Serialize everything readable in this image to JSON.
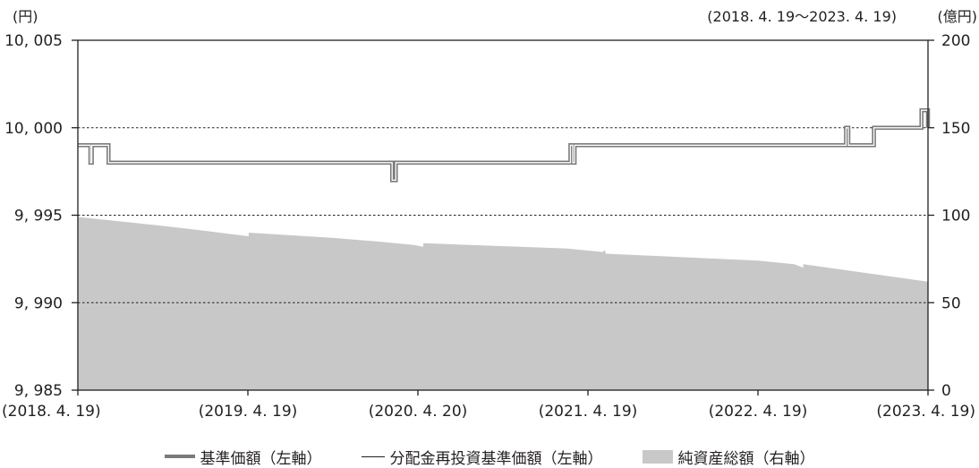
{
  "chart_data": {
    "type": "line",
    "left_unit": "(円)",
    "right_unit": "(億円)",
    "period": "(2018. 4. 19〜2023. 4. 19)",
    "left_ylim": [
      9985,
      10005
    ],
    "left_ticks": [
      "10, 005",
      "10, 000",
      "9, 995",
      "9, 990",
      "9, 985"
    ],
    "right_ylim": [
      0,
      200
    ],
    "right_ticks": [
      "200",
      "150",
      "100",
      "50",
      "0"
    ],
    "x_tick_labels": [
      "(2018. 4. 19)",
      "(2019. 4. 19)",
      "(2020. 4. 20)",
      "(2021. 4. 19)",
      "(2022. 4. 19)",
      "(2023. 4. 19)"
    ],
    "x_domain": [
      "2018-04-19",
      "2023-04-19"
    ],
    "grid": "dashed horizontal at 10,000 / 9,995 / 9,990",
    "legend_position": "bottom",
    "series": [
      {
        "name": "基準価額（左軸）",
        "axis": "left",
        "style": "thick-gray-line",
        "color": "#7a7a7a",
        "points": [
          [
            "2018-04-19",
            9999
          ],
          [
            "2018-05-16",
            9999
          ],
          [
            "2018-05-16",
            9998
          ],
          [
            "2018-05-19",
            9998
          ],
          [
            "2018-05-19",
            9999
          ],
          [
            "2018-06-24",
            9999
          ],
          [
            "2018-06-24",
            9998
          ],
          [
            "2020-02-23",
            9998
          ],
          [
            "2020-02-23",
            9997
          ],
          [
            "2020-03-02",
            9997
          ],
          [
            "2020-03-02",
            9998
          ],
          [
            "2021-03-12",
            9998
          ],
          [
            "2021-03-12",
            9999
          ],
          [
            "2021-03-17",
            9999
          ],
          [
            "2021-03-17",
            9998
          ],
          [
            "2021-03-21",
            9998
          ],
          [
            "2021-03-21",
            9999
          ],
          [
            "2022-10-25",
            9999
          ],
          [
            "2022-10-25",
            10000
          ],
          [
            "2022-10-30",
            10000
          ],
          [
            "2022-10-30",
            9999
          ],
          [
            "2022-12-24",
            9999
          ],
          [
            "2022-12-24",
            10000
          ],
          [
            "2023-04-05",
            10000
          ],
          [
            "2023-04-05",
            10001
          ],
          [
            "2023-04-19",
            10001
          ],
          [
            "2023-04-19",
            10000
          ]
        ]
      },
      {
        "name": "分配金再投資基準価額（左軸）",
        "axis": "left",
        "style": "thin-black-line",
        "color": "#231f20",
        "points": [
          [
            "2018-04-19",
            9999
          ],
          [
            "2018-05-16",
            9999
          ],
          [
            "2018-05-16",
            9998
          ],
          [
            "2018-05-19",
            9998
          ],
          [
            "2018-05-19",
            9999
          ],
          [
            "2018-06-24",
            9999
          ],
          [
            "2018-06-24",
            9998
          ],
          [
            "2020-02-23",
            9998
          ],
          [
            "2020-02-23",
            9997
          ],
          [
            "2020-03-02",
            9997
          ],
          [
            "2020-03-02",
            9998
          ],
          [
            "2021-03-12",
            9998
          ],
          [
            "2021-03-12",
            9999
          ],
          [
            "2021-03-17",
            9999
          ],
          [
            "2021-03-17",
            9998
          ],
          [
            "2021-03-21",
            9998
          ],
          [
            "2021-03-21",
            9999
          ],
          [
            "2022-10-25",
            9999
          ],
          [
            "2022-10-25",
            10000
          ],
          [
            "2022-10-30",
            10000
          ],
          [
            "2022-10-30",
            9999
          ],
          [
            "2022-12-24",
            9999
          ],
          [
            "2022-12-24",
            10000
          ],
          [
            "2023-04-05",
            10000
          ],
          [
            "2023-04-05",
            10001
          ],
          [
            "2023-04-19",
            10001
          ],
          [
            "2023-04-19",
            10000
          ]
        ]
      },
      {
        "name": "純資産総額（右軸）",
        "axis": "right",
        "style": "area",
        "color": "#c8c8c8",
        "points": [
          [
            "2018-04-19",
            99
          ],
          [
            "2018-10-15",
            94
          ],
          [
            "2019-01-20",
            91
          ],
          [
            "2019-03-20",
            89
          ],
          [
            "2019-04-21",
            88
          ],
          [
            "2019-04-21",
            90
          ],
          [
            "2019-10-20",
            87
          ],
          [
            "2020-01-20",
            85
          ],
          [
            "2020-04-10",
            83
          ],
          [
            "2020-04-30",
            82
          ],
          [
            "2020-04-30",
            84
          ],
          [
            "2021-03-01",
            81
          ],
          [
            "2021-05-20",
            79
          ],
          [
            "2021-05-25",
            80
          ],
          [
            "2021-05-27",
            78
          ],
          [
            "2022-04-20",
            74
          ],
          [
            "2022-07-05",
            72
          ],
          [
            "2022-07-25",
            70
          ],
          [
            "2022-07-25",
            72
          ],
          [
            "2023-04-19",
            62
          ]
        ]
      }
    ]
  },
  "legend": {
    "item1": "基準価額（左軸）",
    "item2": "分配金再投資基準価額（左軸）",
    "item3": "純資産総額（右軸）"
  }
}
